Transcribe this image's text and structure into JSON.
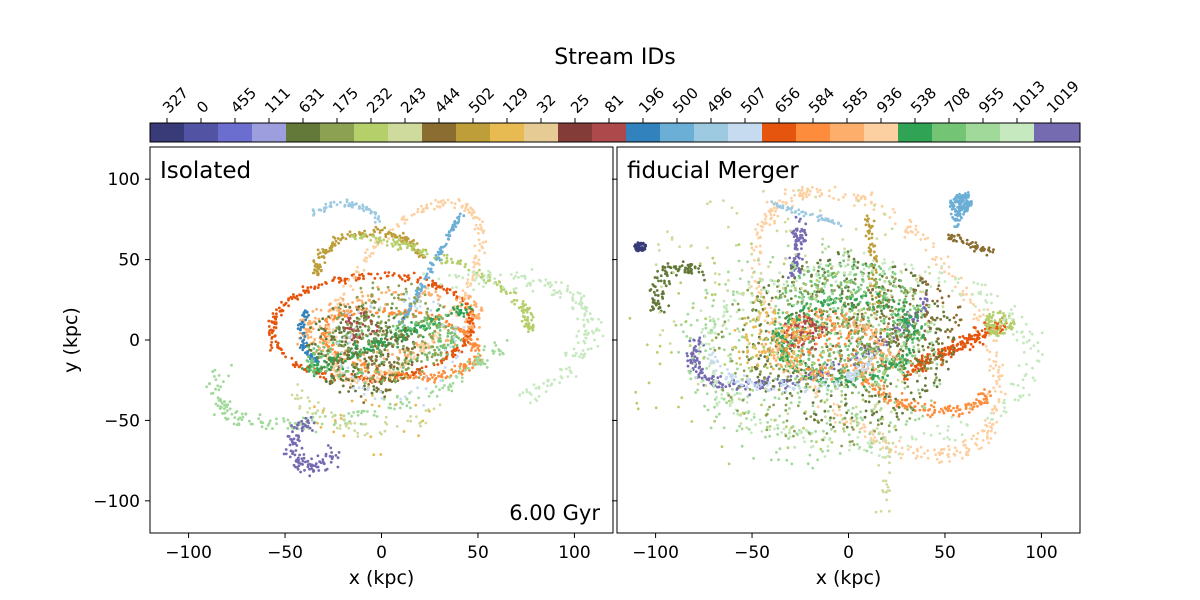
{
  "chart_data": {
    "type": "scatter",
    "colorbar": {
      "title": "Stream IDs",
      "ids": [
        "327",
        "0",
        "455",
        "111",
        "631",
        "175",
        "232",
        "243",
        "444",
        "502",
        "129",
        "32",
        "25",
        "81",
        "196",
        "500",
        "496",
        "507",
        "656",
        "584",
        "585",
        "936",
        "538",
        "708",
        "955",
        "1013",
        "1019"
      ],
      "colors": [
        "#393b79",
        "#5254a3",
        "#6b6ecf",
        "#9c9ede",
        "#637939",
        "#8ca252",
        "#b5cf6b",
        "#cedb9c",
        "#8c6d31",
        "#bd9e39",
        "#e7ba52",
        "#e7cb94",
        "#843c39",
        "#ad494a",
        "#3182bd",
        "#6baed6",
        "#9ecae1",
        "#c6dbef",
        "#e6550d",
        "#fd8d3c",
        "#fdae6b",
        "#fdd0a2",
        "#31a354",
        "#74c476",
        "#a1d99b",
        "#c7e9c0",
        "#756bb1"
      ]
    },
    "panels": [
      {
        "name": "isolated",
        "title": "Isolated",
        "annotation": "6.00 Gyr",
        "xlabel": "x (kpc)",
        "ylabel": "y (kpc)",
        "xlim": [
          -120,
          120
        ],
        "ylim": [
          -120,
          120
        ],
        "xticks": [
          -100,
          -50,
          0,
          50,
          100
        ],
        "yticks": [
          -100,
          -50,
          0,
          50,
          100
        ],
        "tick_labels_x": [
          "−100",
          "−50",
          "0",
          "50",
          "100"
        ],
        "tick_labels_y": [
          "−100",
          "−50",
          "0",
          "50",
          "100"
        ],
        "streams": [
          {
            "id": "656",
            "shape": "ellipse",
            "cx": -5,
            "cy": 8,
            "a": 52,
            "b": 32,
            "rot": 5,
            "n": 360,
            "spread": 1.2
          },
          {
            "id": "584",
            "shape": "ellipse",
            "cx": 10,
            "cy": -2,
            "a": 40,
            "b": 20,
            "rot": -12,
            "n": 260,
            "spread": 1.6
          },
          {
            "id": "936",
            "shape": "ellipse",
            "cx": 12,
            "cy": 30,
            "a": 28,
            "b": 62,
            "rot": -30,
            "n": 300,
            "spread": 1.4
          },
          {
            "id": "585",
            "shape": "ellipse",
            "cx": 5,
            "cy": 10,
            "a": 45,
            "b": 18,
            "rot": 10,
            "n": 200,
            "spread": 2.5
          },
          {
            "id": "502",
            "shape": "arc",
            "cx": -5,
            "cy": 45,
            "a": 28,
            "b": 22,
            "rot": 0,
            "t0": 20,
            "t1": 190,
            "n": 150,
            "spread": 1.4
          },
          {
            "id": "232",
            "shape": "arc",
            "cx": 10,
            "cy": 30,
            "a": 70,
            "b": 28,
            "rot": -20,
            "t0": 0,
            "t1": 120,
            "n": 160,
            "spread": 1.5
          },
          {
            "id": "496",
            "shape": "arc",
            "cx": -20,
            "cy": 55,
            "a": 25,
            "b": 30,
            "rot": 0,
            "t0": 40,
            "t1": 130,
            "n": 60,
            "spread": 1.2
          },
          {
            "id": "500",
            "shape": "line",
            "x0": 10,
            "y0": 10,
            "x1": 42,
            "y1": 80,
            "n": 120,
            "spread": 0.8
          },
          {
            "id": "196",
            "shape": "arc",
            "cx": -30,
            "cy": 5,
            "a": 12,
            "b": 18,
            "rot": 0,
            "t0": 130,
            "t1": 260,
            "n": 60,
            "spread": 1
          },
          {
            "id": "955",
            "shape": "arc",
            "cx": -10,
            "cy": -10,
            "a": 80,
            "b": 35,
            "rot": 20,
            "t0": 150,
            "t1": 330,
            "n": 200,
            "spread": 2.5
          },
          {
            "id": "1013",
            "shape": "arc",
            "cx": 20,
            "cy": -10,
            "a": 90,
            "b": 45,
            "rot": 15,
            "t0": -60,
            "t1": 80,
            "n": 180,
            "spread": 3
          },
          {
            "id": "538",
            "shape": "line",
            "x0": -40,
            "y0": -20,
            "x1": 45,
            "y1": 20,
            "n": 200,
            "spread": 2.5
          },
          {
            "id": "708",
            "shape": "ellipse",
            "cx": 0,
            "cy": -5,
            "a": 38,
            "b": 12,
            "rot": 15,
            "n": 180,
            "spread": 3
          },
          {
            "id": "631",
            "shape": "blob",
            "cx": -10,
            "cy": -5,
            "r": 30,
            "n": 220
          },
          {
            "id": "175",
            "shape": "blob",
            "cx": 5,
            "cy": 5,
            "r": 32,
            "n": 180
          },
          {
            "id": "81",
            "shape": "blob",
            "cx": -10,
            "cy": 8,
            "r": 10,
            "n": 30
          },
          {
            "id": "1019",
            "shape": "arc",
            "cx": -35,
            "cy": -65,
            "a": 12,
            "b": 14,
            "rot": 0,
            "t0": 100,
            "t1": 340,
            "n": 120,
            "spread": 2.5
          },
          {
            "id": "444",
            "shape": "blob",
            "cx": -5,
            "cy": -15,
            "r": 25,
            "n": 60
          },
          {
            "id": "243",
            "shape": "arc",
            "cx": -5,
            "cy": -20,
            "a": 40,
            "b": 35,
            "rot": 0,
            "t0": 200,
            "t1": 320,
            "n": 60,
            "spread": 3
          },
          {
            "id": "129",
            "shape": "blob",
            "cx": -5,
            "cy": -45,
            "r": 30,
            "n": 30
          },
          {
            "id": "507",
            "shape": "ellipse",
            "cx": 10,
            "cy": -5,
            "a": 30,
            "b": 30,
            "rot": 0,
            "n": 60,
            "spread": 3
          }
        ]
      },
      {
        "name": "fiducial-merger",
        "title": "fiducial Merger",
        "annotation": "",
        "xlabel": "x (kpc)",
        "ylabel": "",
        "xlim": [
          -120,
          120
        ],
        "ylim": [
          -120,
          120
        ],
        "xticks": [
          -100,
          -50,
          0,
          50,
          100
        ],
        "yticks": [
          -100,
          -50,
          0,
          50,
          100
        ],
        "tick_labels_x": [
          "−100",
          "−50",
          "0",
          "50",
          "100"
        ],
        "tick_labels_y": [],
        "streams": [
          {
            "id": "327",
            "shape": "blob",
            "cx": -108,
            "cy": 58,
            "r": 3,
            "n": 60
          },
          {
            "id": "500",
            "shape": "blob",
            "cx": 58,
            "cy": 85,
            "r": 6,
            "n": 80
          },
          {
            "id": "500",
            "shape": "line",
            "x0": 55,
            "y0": 72,
            "x1": 62,
            "y1": 92,
            "n": 60,
            "spread": 1.5
          },
          {
            "id": "936",
            "shape": "ellipse",
            "cx": 15,
            "cy": 10,
            "a": 90,
            "b": 50,
            "rot": -60,
            "n": 420,
            "spread": 2.5
          },
          {
            "id": "1019",
            "shape": "arc",
            "cx": -20,
            "cy": 10,
            "a": 65,
            "b": 30,
            "rot": 25,
            "t0": 150,
            "t1": 340,
            "n": 260,
            "spread": 2
          },
          {
            "id": "1019",
            "shape": "line",
            "x0": -25,
            "y0": 75,
            "x1": -28,
            "y1": 40,
            "n": 80,
            "spread": 2
          },
          {
            "id": "656",
            "shape": "line",
            "x0": 30,
            "y0": -20,
            "x1": 80,
            "y1": 10,
            "n": 200,
            "spread": 2.5
          },
          {
            "id": "584",
            "shape": "arc",
            "cx": 40,
            "cy": -20,
            "a": 35,
            "b": 22,
            "rot": -20,
            "t0": 200,
            "t1": 360,
            "n": 160,
            "spread": 2
          },
          {
            "id": "232",
            "shape": "blob",
            "cx": 78,
            "cy": 10,
            "r": 8,
            "n": 80
          },
          {
            "id": "631",
            "shape": "arc",
            "cx": -85,
            "cy": 25,
            "a": 15,
            "b": 20,
            "rot": 0,
            "t0": 60,
            "t1": 200,
            "n": 100,
            "spread": 2.5
          },
          {
            "id": "631",
            "shape": "blob",
            "cx": 0,
            "cy": 0,
            "r": 55,
            "n": 420
          },
          {
            "id": "444",
            "shape": "blob",
            "cx": 30,
            "cy": 10,
            "r": 30,
            "n": 160
          },
          {
            "id": "444",
            "shape": "line",
            "x0": 50,
            "y0": 65,
            "x1": 75,
            "y1": 55,
            "n": 50,
            "spread": 1.5
          },
          {
            "id": "502",
            "shape": "line",
            "x0": 10,
            "y0": 78,
            "x1": 15,
            "y1": 20,
            "n": 60,
            "spread": 1.5
          },
          {
            "id": "708",
            "shape": "blob",
            "cx": 0,
            "cy": 10,
            "r": 40,
            "n": 380
          },
          {
            "id": "538",
            "shape": "ellipse",
            "cx": 0,
            "cy": 0,
            "a": 35,
            "b": 25,
            "rot": 10,
            "n": 260,
            "spread": 3
          },
          {
            "id": "955",
            "shape": "blob",
            "cx": -20,
            "cy": -10,
            "r": 70,
            "n": 380
          },
          {
            "id": "1013",
            "shape": "ellipse",
            "cx": 10,
            "cy": -10,
            "a": 85,
            "b": 55,
            "rot": 0,
            "n": 300,
            "spread": 4
          },
          {
            "id": "175",
            "shape": "blob",
            "cx": -10,
            "cy": -10,
            "r": 60,
            "n": 260
          },
          {
            "id": "585",
            "shape": "arc",
            "cx": -10,
            "cy": -5,
            "a": 30,
            "b": 15,
            "rot": 0,
            "t0": 0,
            "t1": 360,
            "n": 160,
            "spread": 3
          },
          {
            "id": "81",
            "shape": "blob",
            "cx": -22,
            "cy": 5,
            "r": 12,
            "n": 60
          },
          {
            "id": "507",
            "shape": "arc",
            "cx": -30,
            "cy": -10,
            "a": 40,
            "b": 20,
            "rot": 0,
            "t0": 180,
            "t1": 360,
            "n": 120,
            "spread": 2
          },
          {
            "id": "496",
            "shape": "line",
            "x0": -40,
            "y0": 85,
            "x1": -5,
            "y1": 72,
            "n": 50,
            "spread": 1
          },
          {
            "id": "129",
            "shape": "blob",
            "cx": -40,
            "cy": 0,
            "r": 20,
            "n": 80
          },
          {
            "id": "232",
            "shape": "blob",
            "cx": -50,
            "cy": -10,
            "r": 70,
            "n": 100
          },
          {
            "id": "243",
            "shape": "blob",
            "cx": -30,
            "cy": 20,
            "r": 80,
            "n": 120
          },
          {
            "id": "584",
            "shape": "blob",
            "cx": -15,
            "cy": 0,
            "r": 20,
            "n": 80
          },
          {
            "id": "243",
            "shape": "line",
            "x0": 15,
            "y0": -25,
            "x1": 20,
            "y1": -110,
            "n": 40,
            "spread": 3
          }
        ]
      }
    ]
  }
}
